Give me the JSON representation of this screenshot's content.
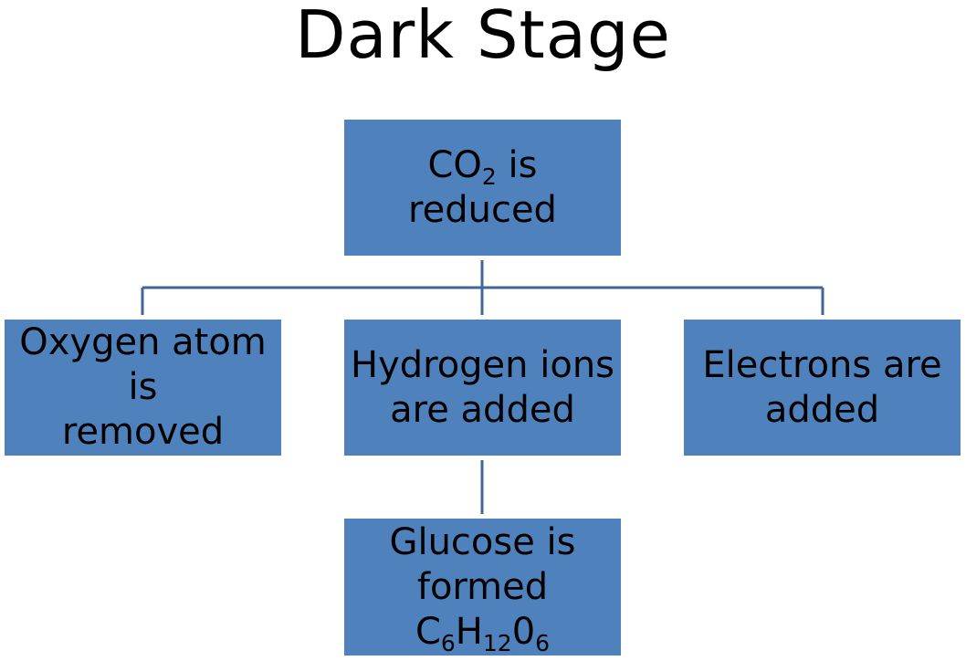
{
  "title": "Dark Stage",
  "colors": {
    "box_fill": "#4f81bd",
    "connector": "#41679a",
    "text": "#000000"
  },
  "nodes": {
    "root": {
      "line1_main": "CO",
      "line1_sub": "2",
      "line1_tail": " is",
      "line2": "reduced"
    },
    "left": {
      "line1": "Oxygen atom",
      "line2": "is",
      "line3": "removed"
    },
    "middle": {
      "line1": "Hydrogen ions",
      "line2": "are added"
    },
    "right": {
      "line1": "Electrons are",
      "line2": "added"
    },
    "bottom": {
      "line1": "Glucose is",
      "line2": "formed",
      "formula": {
        "c": "C",
        "c_sub": "6",
        "h": "H",
        "h_sub": "12",
        "o": "0",
        "o_sub": "6"
      }
    }
  }
}
